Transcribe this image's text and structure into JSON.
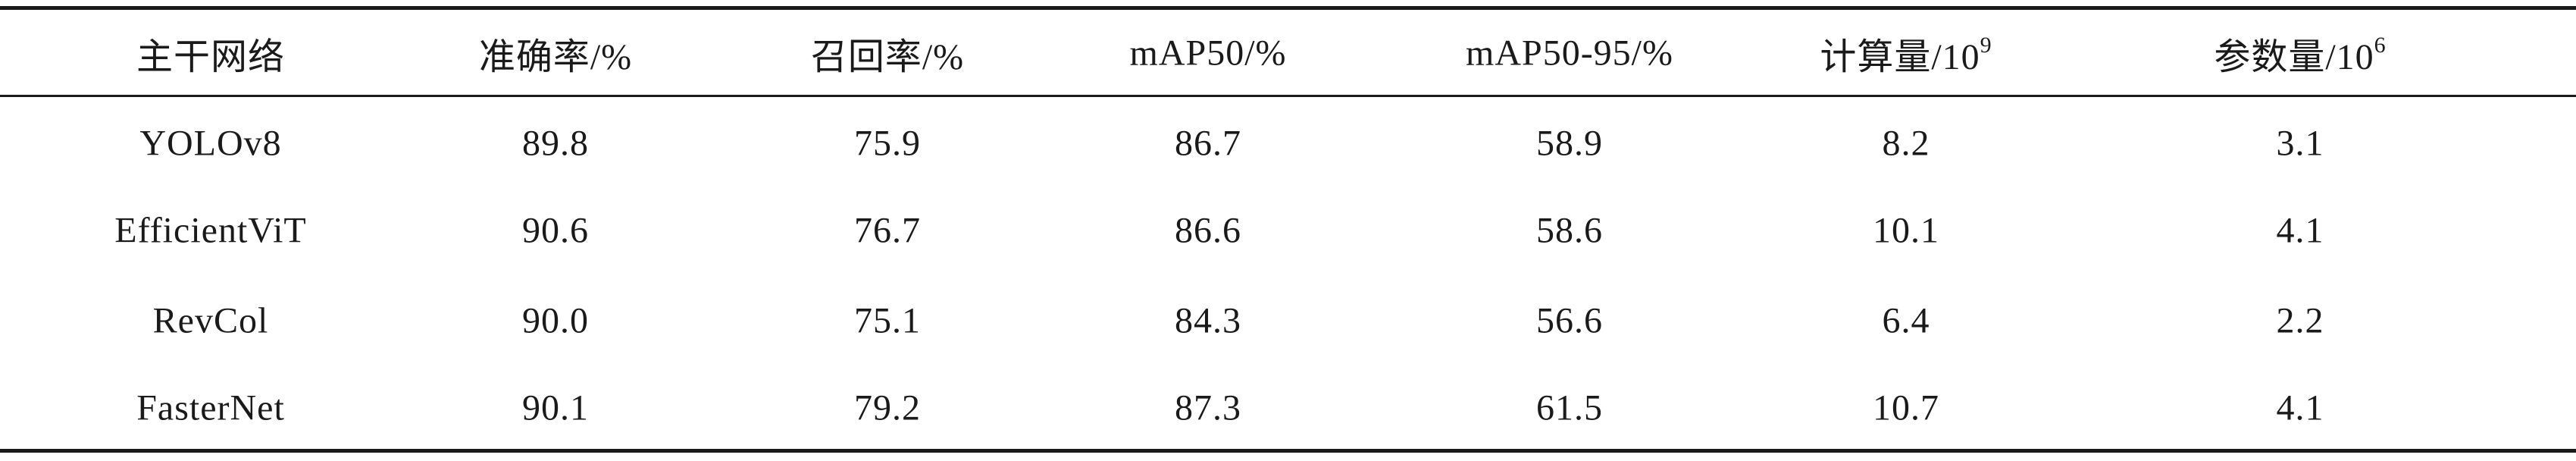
{
  "table": {
    "header": [
      "主干网络",
      "准确率/%",
      "召回率/%",
      "mAP50/%",
      "mAP50-95/%",
      {
        "text": "计算量/10",
        "sup": "9"
      },
      {
        "text": "参数量/10",
        "sup": "6"
      }
    ],
    "rows": [
      [
        "YOLOv8",
        "89.8",
        "75.9",
        "86.7",
        "58.9",
        "8.2",
        "3.1"
      ],
      [
        "EfficientViT",
        "90.6",
        "76.7",
        "86.6",
        "58.6",
        "10.1",
        "4.1"
      ],
      [
        "RevCol",
        "90.0",
        "75.1",
        "84.3",
        "56.6",
        "6.4",
        "2.2"
      ],
      [
        "FasterNet",
        "90.1",
        "79.2",
        "87.3",
        "61.5",
        "10.7",
        "4.1"
      ]
    ]
  }
}
